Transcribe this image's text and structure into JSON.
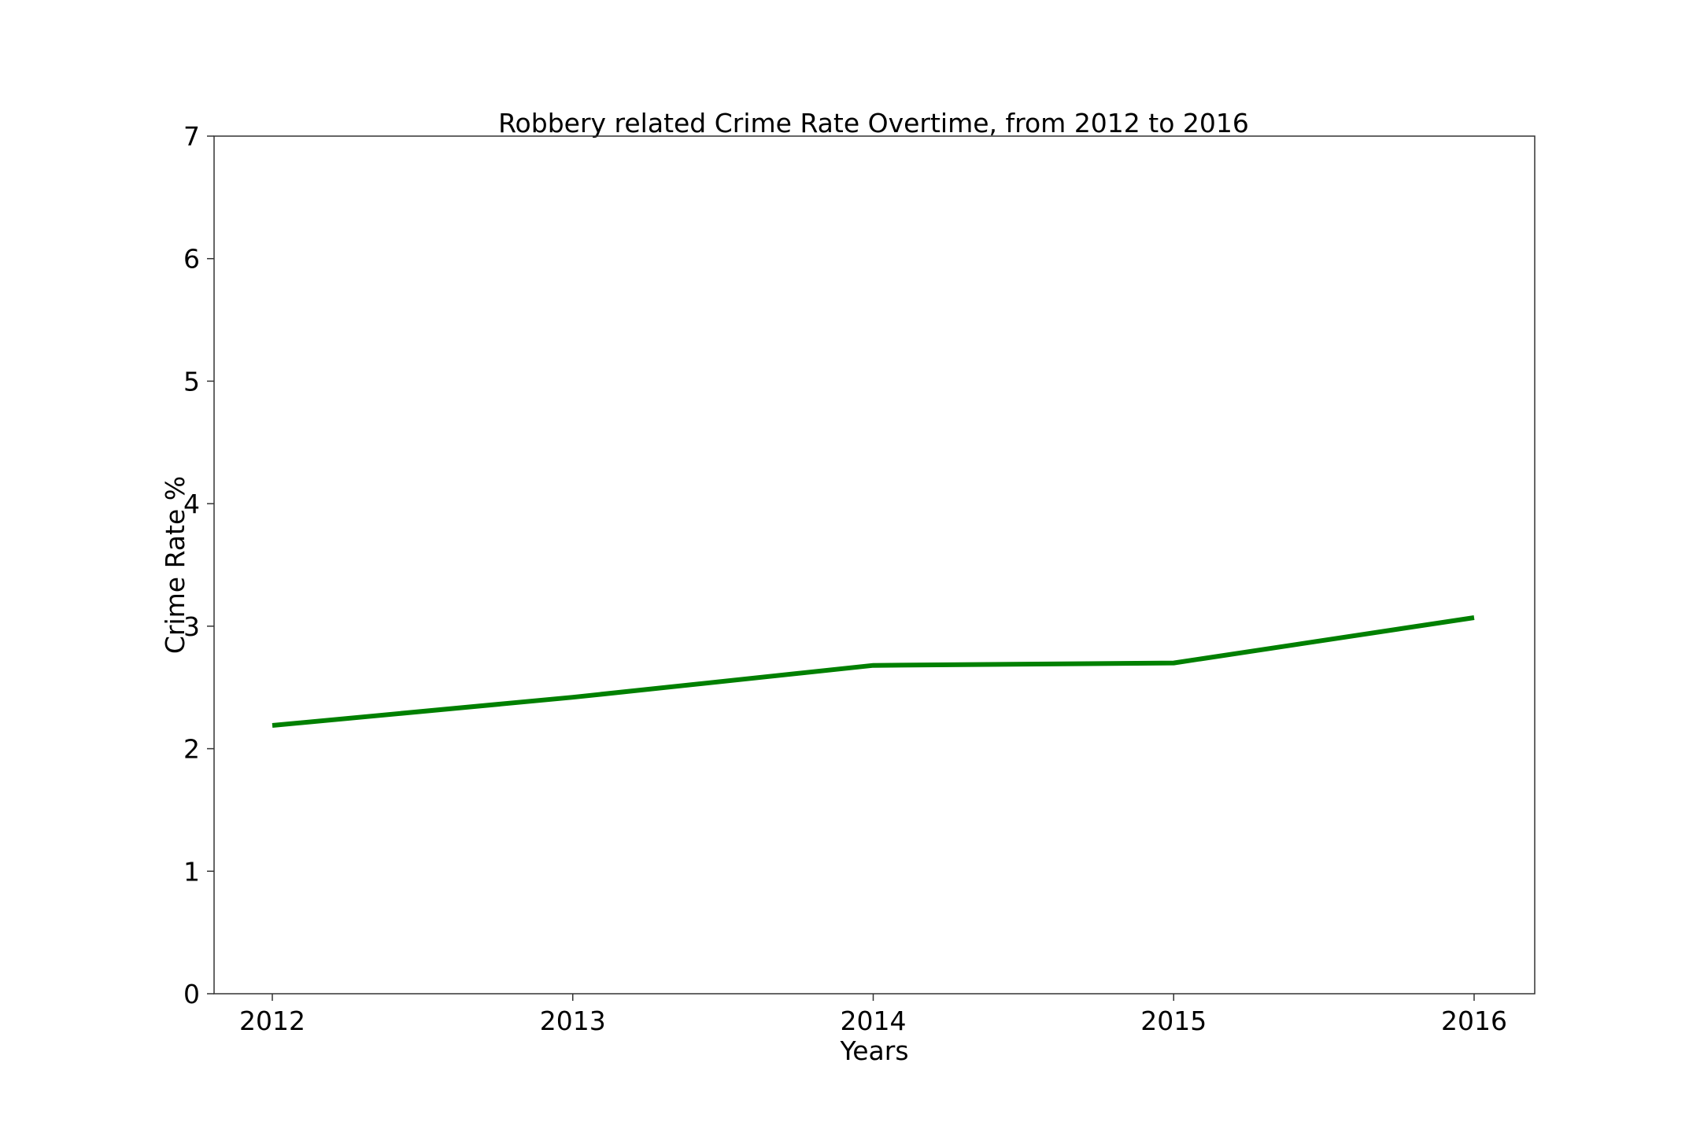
{
  "chart_data": {
    "type": "line",
    "title": "Robbery related Crime Rate Overtime, from 2012 to 2016",
    "xlabel": "Years",
    "ylabel": "Crime Rate %",
    "x": [
      "2012",
      "2013",
      "2014",
      "2015",
      "2016"
    ],
    "series": [
      {
        "values": [
          2.19,
          2.42,
          2.68,
          2.7,
          3.07
        ],
        "color": "#008000"
      }
    ],
    "ylim": [
      0,
      7
    ],
    "yticks": [
      "0",
      "1",
      "2",
      "3",
      "4",
      "5",
      "6",
      "7"
    ],
    "grid": false,
    "legend": false
  }
}
